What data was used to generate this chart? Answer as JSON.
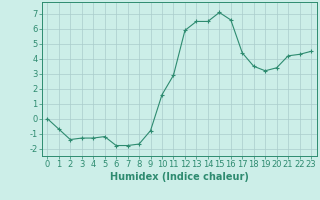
{
  "x": [
    0,
    1,
    2,
    3,
    4,
    5,
    6,
    7,
    8,
    9,
    10,
    11,
    12,
    13,
    14,
    15,
    16,
    17,
    18,
    19,
    20,
    21,
    22,
    23
  ],
  "y": [
    0.0,
    -0.7,
    -1.4,
    -1.3,
    -1.3,
    -1.2,
    -1.8,
    -1.8,
    -1.7,
    -0.8,
    1.6,
    2.9,
    5.9,
    6.5,
    6.5,
    7.1,
    6.6,
    4.4,
    3.5,
    3.2,
    3.4,
    4.2,
    4.3,
    4.5
  ],
  "line_color": "#2e8b70",
  "marker": "+",
  "marker_size": 3,
  "marker_lw": 0.8,
  "line_width": 0.8,
  "bg_color": "#cceee8",
  "grid_color": "#aacccc",
  "axis_color": "#2e8b70",
  "tick_color": "#2e8b70",
  "xlabel": "Humidex (Indice chaleur)",
  "xlabel_fontsize": 7,
  "yticks": [
    -2,
    -1,
    0,
    1,
    2,
    3,
    4,
    5,
    6,
    7
  ],
  "ylim": [
    -2.5,
    7.8
  ],
  "xlim": [
    -0.5,
    23.5
  ],
  "tick_fontsize": 6
}
